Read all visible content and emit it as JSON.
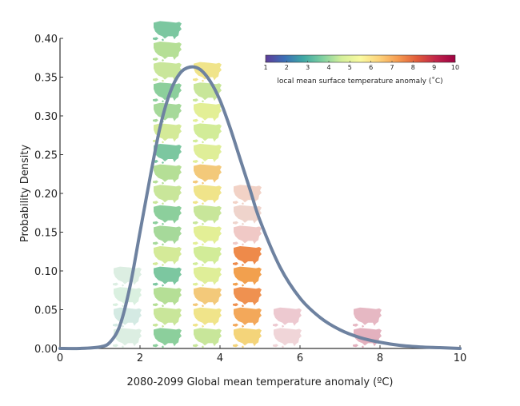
{
  "chart_data": {
    "type": "line",
    "title": "",
    "xlabel": "2080-2099 Global mean temperature anomaly (ºC)",
    "ylabel": "Probability Density",
    "xlim": [
      0,
      10
    ],
    "ylim": [
      0,
      0.4
    ],
    "x_ticks": [
      "0",
      "2",
      "4",
      "6",
      "8",
      "10"
    ],
    "y_ticks": [
      "0.00",
      "0.05",
      "0.10",
      "0.15",
      "0.20",
      "0.25",
      "0.30",
      "0.35",
      "0.40"
    ],
    "grid": false,
    "series": [
      {
        "name": "Probability density",
        "color": "#6e82a0",
        "x": [
          0,
          0.5,
          1.0,
          1.25,
          1.5,
          1.75,
          2.0,
          2.25,
          2.5,
          2.75,
          3.0,
          3.25,
          3.5,
          3.75,
          4.0,
          4.25,
          4.5,
          4.75,
          5.0,
          5.5,
          6.0,
          6.5,
          7.0,
          7.5,
          8.0,
          8.5,
          9.0,
          9.5,
          10.0
        ],
        "y": [
          0.0,
          0.0,
          0.002,
          0.008,
          0.03,
          0.08,
          0.15,
          0.22,
          0.285,
          0.33,
          0.355,
          0.363,
          0.36,
          0.345,
          0.32,
          0.285,
          0.245,
          0.205,
          0.165,
          0.105,
          0.065,
          0.04,
          0.024,
          0.014,
          0.008,
          0.004,
          0.002,
          0.001,
          0.0
        ]
      }
    ],
    "map_columns": [
      {
        "x": 1.7,
        "count": 4,
        "palette": "faded-cool"
      },
      {
        "x": 2.7,
        "count": 16,
        "palette": "cool-green"
      },
      {
        "x": 3.7,
        "count": 14,
        "palette": "yellow-green"
      },
      {
        "x": 4.7,
        "count": 8,
        "palette": "warm"
      },
      {
        "x": 5.7,
        "count": 2,
        "palette": "faded-warm"
      },
      {
        "x": 7.7,
        "count": 2,
        "palette": "faded-hot"
      }
    ],
    "colorbar": {
      "title": "local mean surface temperature anomaly (˚C)",
      "ticks": [
        "1",
        "2",
        "3",
        "4",
        "5",
        "6",
        "7",
        "8",
        "9",
        "10"
      ],
      "range": [
        1,
        10
      ],
      "colors": [
        "#5e3c99",
        "#3b6fb6",
        "#3fa8a4",
        "#7fd0a0",
        "#d4ef9a",
        "#fafaa0",
        "#fdd27a",
        "#f59a50",
        "#e05a3a",
        "#c0244a",
        "#9e0142"
      ]
    }
  }
}
